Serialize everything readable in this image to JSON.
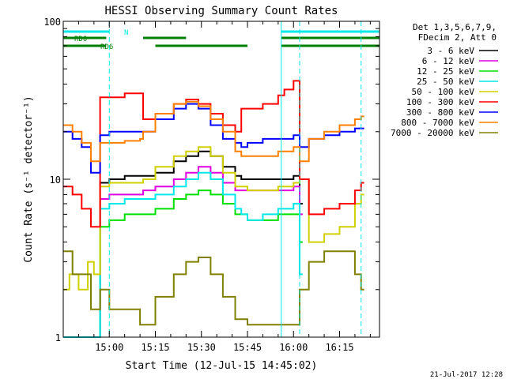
{
  "chart_data": {
    "type": "line",
    "title": "HESSI Observing Summary Count Rates",
    "xlabel": "Start Time (12-Jul-15 14:45:02)",
    "ylabel": "Count Rate (s⁻¹ detector⁻¹)",
    "y_scale": "log",
    "ylim": [
      1,
      100
    ],
    "y_tick_labels": [
      "1",
      "10",
      "100"
    ],
    "x_axis_min": 0,
    "x_axis_max": 103,
    "x_ticks": [
      {
        "t": 15,
        "label": "15:00"
      },
      {
        "t": 30,
        "label": "15:15"
      },
      {
        "t": 45,
        "label": "15:30"
      },
      {
        "t": 60,
        "label": "15:45"
      },
      {
        "t": 75,
        "label": "16:00"
      },
      {
        "t": 90,
        "label": "16:15"
      }
    ],
    "legend_header": [
      "Det 1,3,5,6,7,9,",
      "FDecim 2, Att 0"
    ],
    "legend_position": "right",
    "footer_date": "21-Jul-2017 12:28",
    "flag_labels": {
      "rd0": "RD0",
      "rd6": "RD6",
      "n": "N"
    },
    "flag_colors": {
      "rd": "#008000",
      "n": "#00e8e8"
    },
    "rd0_segments": [
      [
        0,
        14
      ],
      [
        26,
        40
      ],
      [
        71,
        103
      ]
    ],
    "rd6_segments": [
      [
        0,
        14
      ],
      [
        30,
        60
      ],
      [
        71,
        103
      ]
    ],
    "n_segments": [
      [
        0,
        15
      ],
      [
        71,
        103
      ]
    ],
    "dashed_vlines": [
      15,
      77,
      97
    ],
    "solid_vlines": [
      71
    ],
    "series": [
      {
        "name": "3 - 6 keV",
        "color": "#000000",
        "x": [
          0,
          9,
          12,
          15,
          20,
          26,
          30,
          36,
          40,
          44,
          48,
          52,
          56,
          58,
          60,
          65,
          70,
          75,
          77
        ],
        "y": [
          1,
          1,
          9.5,
          10,
          10.5,
          10.5,
          11,
          13,
          14,
          15,
          14,
          12,
          10.5,
          10,
          10,
          10,
          10,
          10.5,
          7
        ]
      },
      {
        "name": "6 - 12 keV",
        "color": "#e000e0",
        "x": [
          0,
          9,
          12,
          15,
          20,
          26,
          30,
          36,
          40,
          44,
          48,
          52,
          56,
          58,
          60,
          65,
          70,
          75,
          77
        ],
        "y": [
          1,
          1,
          7.5,
          8,
          8,
          8.5,
          9,
          10,
          11,
          12,
          11,
          9.5,
          8.5,
          8.5,
          8.5,
          8.5,
          8.5,
          9,
          6
        ]
      },
      {
        "name": "12 - 25 keV",
        "color": "#00e000",
        "x": [
          0,
          9,
          12,
          15,
          20,
          26,
          30,
          36,
          40,
          44,
          48,
          52,
          56,
          58,
          60,
          65,
          70,
          75,
          77
        ],
        "y": [
          1,
          1,
          5,
          5.5,
          6,
          6,
          6.5,
          7.5,
          8,
          8.5,
          8,
          7,
          6,
          6,
          5.5,
          5.5,
          6,
          6,
          4
        ]
      },
      {
        "name": "25 - 50 keV",
        "color": "#00e8e8",
        "x": [
          0,
          9,
          12,
          15,
          20,
          26,
          30,
          36,
          40,
          44,
          48,
          52,
          56,
          58,
          60,
          65,
          70,
          75,
          77
        ],
        "y": [
          1,
          1,
          6.5,
          7,
          7.5,
          7.5,
          8,
          9,
          10,
          11,
          10,
          8,
          6.5,
          6,
          5.5,
          6,
          6.5,
          7,
          2.5
        ]
      },
      {
        "name": "50 - 100 keV",
        "color": "#d0d000",
        "x": [
          0,
          2,
          5,
          8,
          10,
          12,
          15,
          20,
          26,
          30,
          36,
          40,
          44,
          48,
          52,
          56,
          58,
          60,
          65,
          70,
          75,
          77,
          80,
          85,
          90,
          95,
          97
        ],
        "y": [
          2,
          2.5,
          2,
          3,
          2.5,
          9,
          9.5,
          9.5,
          10,
          12,
          14,
          15,
          16,
          14,
          11,
          9,
          9,
          8.5,
          8.5,
          9,
          9.5,
          10,
          4,
          4.5,
          5,
          7,
          8
        ]
      },
      {
        "name": "100 - 300 keV",
        "color": "#ff0000",
        "x": [
          0,
          3,
          6,
          9,
          12,
          15,
          20,
          25,
          26,
          30,
          36,
          40,
          44,
          48,
          52,
          56,
          58,
          60,
          65,
          70,
          72,
          75,
          77,
          80,
          85,
          90,
          95,
          97
        ],
        "y": [
          9,
          8,
          6.5,
          5,
          33,
          33,
          35,
          35,
          24,
          26,
          30,
          32,
          30,
          26,
          22,
          20,
          28,
          28,
          30,
          34,
          37,
          42,
          10,
          6,
          6.5,
          7,
          8.5,
          9.5
        ]
      },
      {
        "name": "300 - 800 keV",
        "color": "#0000ff",
        "x": [
          0,
          3,
          6,
          9,
          12,
          15,
          20,
          25,
          26,
          30,
          36,
          40,
          44,
          48,
          52,
          56,
          58,
          60,
          65,
          70,
          75,
          77,
          80,
          85,
          90,
          95,
          97
        ],
        "y": [
          20,
          18,
          16,
          11,
          19,
          20,
          20,
          20,
          20,
          24,
          28,
          30,
          28,
          22,
          18,
          17,
          16,
          17,
          18,
          18,
          19,
          16,
          18,
          19,
          20,
          21,
          21
        ]
      },
      {
        "name": "800 - 7000 keV",
        "color": "#ff8000",
        "x": [
          0,
          3,
          6,
          9,
          12,
          15,
          20,
          25,
          26,
          30,
          36,
          40,
          44,
          48,
          52,
          56,
          58,
          60,
          65,
          70,
          75,
          77,
          80,
          85,
          90,
          95,
          97
        ],
        "y": [
          22,
          20,
          17,
          13,
          17,
          17,
          17.5,
          18,
          20,
          26,
          30,
          31,
          29,
          24,
          20,
          15,
          14,
          14,
          14,
          15,
          16,
          13,
          18,
          20,
          22,
          24,
          25
        ]
      },
      {
        "name": "7000 - 20000 keV",
        "color": "#808000",
        "x": [
          0,
          3,
          6,
          9,
          12,
          15,
          20,
          25,
          30,
          36,
          40,
          44,
          48,
          52,
          56,
          60,
          65,
          70,
          75,
          77,
          80,
          85,
          90,
          95,
          97
        ],
        "y": [
          3.5,
          2.5,
          2.5,
          1.5,
          2,
          1.5,
          1.5,
          1.2,
          1.8,
          2.5,
          3,
          3.2,
          2.5,
          1.8,
          1.3,
          1.2,
          1.2,
          1.2,
          1.2,
          2,
          3,
          3.5,
          3.5,
          2.5,
          2
        ]
      }
    ]
  }
}
